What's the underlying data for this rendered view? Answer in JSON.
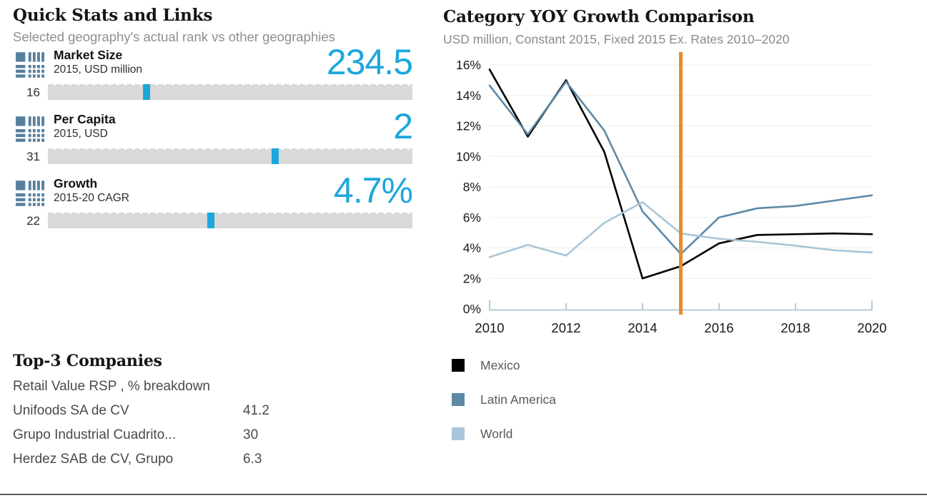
{
  "quick_stats": {
    "title": "Quick Stats and Links",
    "subtitle": "Selected geography's actual rank vs other geographies",
    "accent_color": "#1ca7dc",
    "bar_color": "#d9d9d9",
    "icon_color": "#57809e",
    "stats": [
      {
        "title": "Market Size",
        "subtitle": "2015, USD million",
        "value": "234.5",
        "rank": "16",
        "marker_pct": 27.0
      },
      {
        "title": "Per Capita",
        "subtitle": "2015, USD",
        "value": "2",
        "rank": "31",
        "marker_pct": 62.4
      },
      {
        "title": "Growth",
        "subtitle": "2015-20 CAGR",
        "value": "4.7%",
        "rank": "22",
        "marker_pct": 44.7
      }
    ]
  },
  "companies": {
    "title": "Top-3 Companies",
    "subtitle": "Retail Value RSP , % breakdown",
    "rows": [
      {
        "name": "Unifoods SA de CV",
        "value": "41.2"
      },
      {
        "name": "Grupo Industrial Cuadrito...",
        "value": "30"
      },
      {
        "name": "Herdez SAB de CV, Grupo",
        "value": "6.3"
      }
    ]
  },
  "chart": {
    "title": "Category YOY Growth Comparison",
    "subtitle": "USD million, Constant 2015, Fixed 2015 Ex. Rates  2010–2020"
  },
  "chart_data": {
    "type": "line",
    "title": "Category YOY Growth Comparison",
    "subtitle": "USD million, Constant 2015, Fixed 2015 Ex. Rates 2010–2020",
    "x": [
      2010,
      2011,
      2012,
      2013,
      2014,
      2015,
      2016,
      2017,
      2018,
      2019,
      2020
    ],
    "x_tick_years": [
      2010,
      2012,
      2014,
      2016,
      2018,
      2020
    ],
    "x_tick_labels": [
      "2010",
      "2012",
      "2014",
      "2016",
      "2018",
      "2020"
    ],
    "y_tick_values": [
      0,
      2,
      4,
      6,
      8,
      10,
      12,
      14,
      16
    ],
    "y_tick_labels": [
      "0%",
      "2%",
      "4%",
      "6%",
      "8%",
      "10%",
      "12%",
      "14%",
      "16%"
    ],
    "ylim": [
      0,
      16
    ],
    "grid": true,
    "legend_position": "bottom-left",
    "annotations": [
      {
        "type": "vline",
        "x": 2015,
        "color": "#e78c23",
        "label": "selected-year-2015"
      }
    ],
    "series": [
      {
        "name": "Mexico",
        "color": "#000000",
        "values": [
          15.7,
          11.3,
          15.0,
          10.3,
          2.0,
          2.8,
          4.3,
          4.85,
          4.9,
          4.95,
          4.9
        ]
      },
      {
        "name": "Latin America",
        "color": "#5d89a8",
        "values": [
          14.65,
          11.45,
          14.9,
          11.7,
          6.4,
          3.6,
          6.0,
          6.6,
          6.75,
          7.1,
          7.45
        ]
      },
      {
        "name": "World",
        "color": "#aac5d8",
        "values": [
          3.4,
          4.2,
          3.5,
          5.65,
          7.0,
          4.95,
          4.6,
          4.4,
          4.15,
          3.85,
          3.7
        ]
      }
    ],
    "axis_color": "#b6cbd9",
    "gridline_color": "#ececec"
  }
}
